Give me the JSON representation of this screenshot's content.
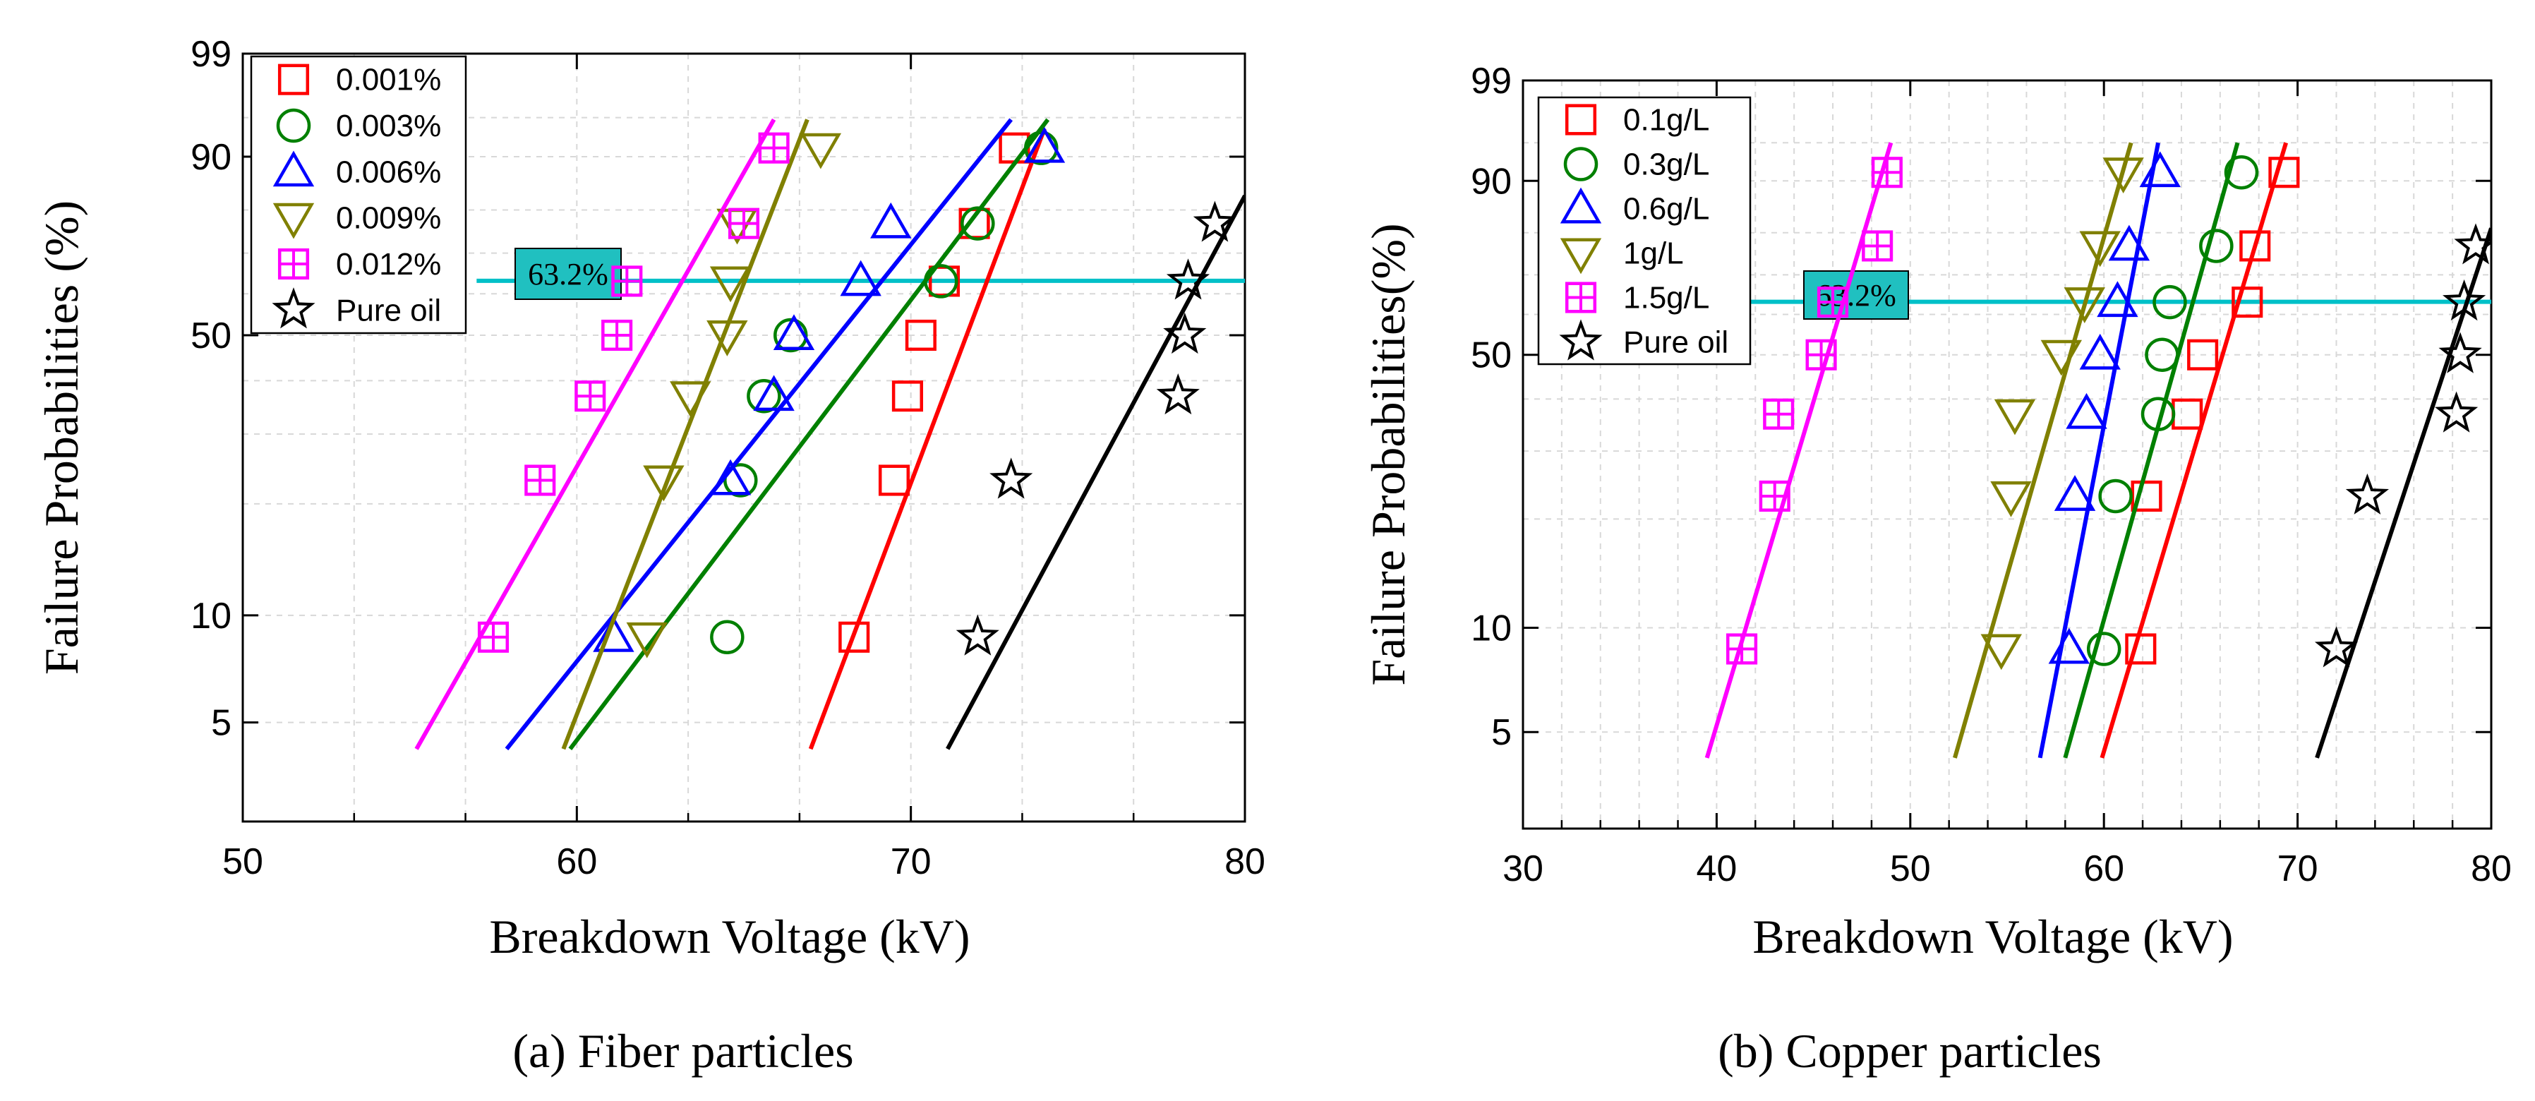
{
  "chart_data": [
    {
      "type": "scatter",
      "subtitle": "(a) Fiber particles",
      "xlabel": "Breakdown Voltage (kV)",
      "ylabel": "Failure Probabilities (%)",
      "xlim": [
        50,
        80
      ],
      "xticks": [
        "50",
        "60",
        "70",
        "80"
      ],
      "ylim": [
        2.6,
        99
      ],
      "yscale": "weibull",
      "yticks": [
        "5",
        "10",
        "50",
        "90",
        "99"
      ],
      "grid": true,
      "legend_position": "top-left",
      "annotation": {
        "text": "63.2%",
        "y": 63.2,
        "x_range": [
          57,
          80
        ]
      },
      "series": [
        {
          "name": "0.001%",
          "color": "#ff0000",
          "marker": "square",
          "points": [
            [
              68.3,
              8.7
            ],
            [
              69.5,
              23
            ],
            [
              69.9,
              36.9
            ],
            [
              70.3,
              50
            ],
            [
              71.0,
              63.1
            ],
            [
              71.9,
              77
            ],
            [
              73.1,
              91.3
            ]
          ],
          "fit": [
            [
              67.0,
              4.2
            ],
            [
              74.0,
              93.8
            ]
          ]
        },
        {
          "name": "0.003%",
          "color": "#008000",
          "marker": "circle",
          "points": [
            [
              64.5,
              8.7
            ],
            [
              64.9,
              23
            ],
            [
              65.6,
              36.9
            ],
            [
              66.4,
              50
            ],
            [
              70.9,
              63.1
            ],
            [
              72.0,
              77
            ],
            [
              73.9,
              91.3
            ]
          ],
          "fit": [
            [
              59.8,
              4.2
            ],
            [
              74.1,
              94.8
            ]
          ]
        },
        {
          "name": "0.006%",
          "color": "#0000ff",
          "marker": "triangle-up",
          "points": [
            [
              61.1,
              8.7
            ],
            [
              64.6,
              23
            ],
            [
              65.9,
              36.9
            ],
            [
              66.5,
              50
            ],
            [
              68.5,
              63.1
            ],
            [
              69.4,
              77
            ],
            [
              74.0,
              91.3
            ]
          ],
          "fit": [
            [
              57.9,
              4.2
            ],
            [
              73.0,
              94.8
            ]
          ]
        },
        {
          "name": "0.009%",
          "color": "#808000",
          "marker": "triangle-down",
          "points": [
            [
              62.1,
              8.7
            ],
            [
              62.6,
              23
            ],
            [
              63.4,
              36.9
            ],
            [
              64.5,
              50
            ],
            [
              64.6,
              63.1
            ],
            [
              64.8,
              77
            ],
            [
              67.3,
              91.3
            ]
          ],
          "fit": [
            [
              59.6,
              4.2
            ],
            [
              66.9,
              94.8
            ]
          ]
        },
        {
          "name": "0.012%",
          "color": "#ff00ff",
          "marker": "square-cross",
          "points": [
            [
              57.5,
              8.7
            ],
            [
              58.9,
              23
            ],
            [
              60.4,
              36.9
            ],
            [
              61.2,
              50
            ],
            [
              61.5,
              63.1
            ],
            [
              65.0,
              77
            ],
            [
              65.9,
              91.3
            ]
          ],
          "fit": [
            [
              55.2,
              4.2
            ],
            [
              65.9,
              94.8
            ]
          ]
        },
        {
          "name": "Pure oil",
          "color": "#000000",
          "marker": "star",
          "points": [
            [
              72.0,
              8.7
            ],
            [
              73.0,
              23
            ],
            [
              78.0,
              36.9
            ],
            [
              78.2,
              50
            ],
            [
              78.3,
              63.1
            ],
            [
              79.1,
              77
            ]
          ],
          "fit": [
            [
              71.1,
              4.2
            ],
            [
              80.0,
              83.0
            ]
          ]
        }
      ]
    },
    {
      "type": "scatter",
      "subtitle": "(b) Copper particles",
      "xlabel": "Breakdown Voltage (kV)",
      "ylabel": "Failure Probabilities(%)",
      "xlim": [
        30,
        80
      ],
      "xticks": [
        "30",
        "40",
        "50",
        "60",
        "70",
        "80"
      ],
      "ylim": [
        2.6,
        99
      ],
      "yscale": "weibull",
      "yticks": [
        "5",
        "10",
        "50",
        "90",
        "99"
      ],
      "grid": true,
      "legend_position": "top-left",
      "annotation": {
        "text": "63.2%",
        "y": 63.2,
        "x_range": [
          40,
          80
        ]
      },
      "series": [
        {
          "name": "0.1g/L",
          "color": "#ff0000",
          "marker": "square",
          "points": [
            [
              61.9,
              8.7
            ],
            [
              62.2,
              23
            ],
            [
              64.3,
              36.9
            ],
            [
              65.1,
              50
            ],
            [
              67.4,
              63.1
            ],
            [
              67.8,
              77
            ],
            [
              69.3,
              91.3
            ]
          ],
          "fit": [
            [
              59.9,
              4.2
            ],
            [
              69.4,
              95.0
            ]
          ]
        },
        {
          "name": "0.3g/L",
          "color": "#008000",
          "marker": "circle",
          "points": [
            [
              60.0,
              8.7
            ],
            [
              60.6,
              23
            ],
            [
              62.8,
              36.9
            ],
            [
              63.0,
              50
            ],
            [
              63.4,
              63.1
            ],
            [
              65.8,
              77
            ],
            [
              67.1,
              91.3
            ]
          ],
          "fit": [
            [
              58.0,
              4.2
            ],
            [
              66.9,
              95.0
            ]
          ]
        },
        {
          "name": "0.6g/L",
          "color": "#0000ff",
          "marker": "triangle-up",
          "points": [
            [
              58.2,
              8.7
            ],
            [
              58.5,
              23
            ],
            [
              59.1,
              36.9
            ],
            [
              59.8,
              50
            ],
            [
              60.7,
              63.1
            ],
            [
              61.3,
              77
            ],
            [
              62.9,
              91.3
            ]
          ],
          "fit": [
            [
              56.7,
              4.2
            ],
            [
              62.8,
              95.0
            ]
          ]
        },
        {
          "name": "1g/L",
          "color": "#808000",
          "marker": "triangle-down",
          "points": [
            [
              54.7,
              8.7
            ],
            [
              55.2,
              23
            ],
            [
              55.4,
              36.9
            ],
            [
              57.8,
              50
            ],
            [
              59.0,
              63.1
            ],
            [
              59.8,
              77
            ],
            [
              61.0,
              91.3
            ]
          ],
          "fit": [
            [
              52.3,
              4.2
            ],
            [
              61.4,
              95.0
            ]
          ]
        },
        {
          "name": "1.5g/L",
          "color": "#ff00ff",
          "marker": "square-cross",
          "points": [
            [
              41.3,
              8.7
            ],
            [
              43.0,
              23
            ],
            [
              43.2,
              36.9
            ],
            [
              45.4,
              50
            ],
            [
              46.0,
              63.1
            ],
            [
              48.3,
              77
            ],
            [
              48.8,
              91.3
            ]
          ],
          "fit": [
            [
              39.5,
              4.2
            ],
            [
              49.0,
              95.0
            ]
          ]
        },
        {
          "name": "Pure oil",
          "color": "#000000",
          "marker": "star",
          "points": [
            [
              72.0,
              8.7
            ],
            [
              73.6,
              23
            ],
            [
              78.2,
              36.9
            ],
            [
              78.4,
              50
            ],
            [
              78.6,
              63.1
            ],
            [
              79.2,
              77
            ]
          ],
          "fit": [
            [
              71.0,
              4.2
            ],
            [
              80.0,
              81.0
            ]
          ]
        }
      ]
    }
  ],
  "reference_color": "#00c0c8",
  "annotation_fill": "#20c0c0"
}
